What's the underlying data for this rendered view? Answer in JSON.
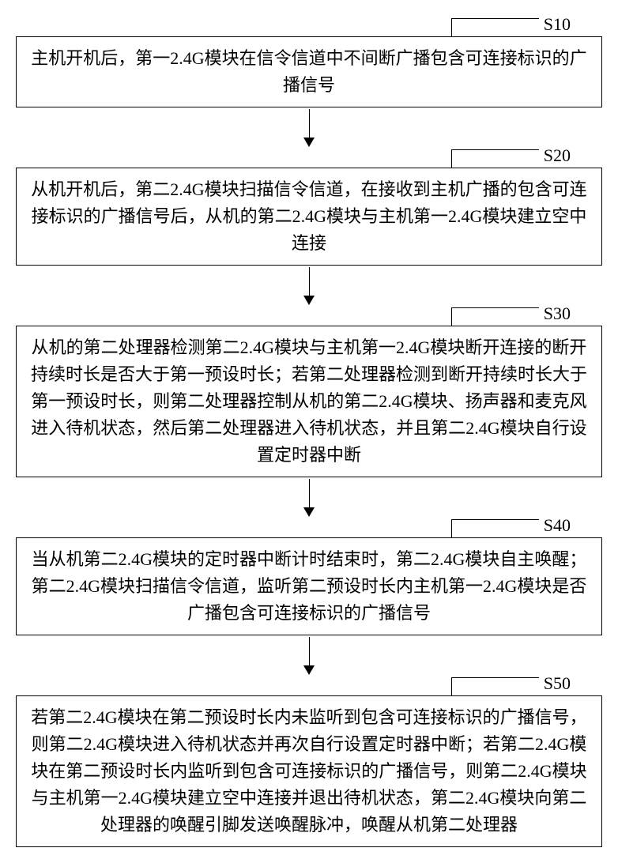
{
  "flowchart": {
    "type": "flowchart",
    "background_color": "#ffffff",
    "border_color": "#000000",
    "text_color": "#000000",
    "font_family": "SimSun",
    "box_font_size": 22,
    "label_font_size": 22,
    "label_font_family": "Times New Roman",
    "line_height": 34,
    "border_width": 1.5,
    "arrow_shaft_height": 38,
    "arrow_head_size": 12,
    "steps": [
      {
        "label": "S10",
        "text": "主机开机后，第一2.4G模块在信令信道中不间断广播包含可连接标识的广播信号"
      },
      {
        "label": "S20",
        "text": "从机开机后，第二2.4G模块扫描信令信道，在接收到主机广播的包含可连接标识的广播信号后，从机的第二2.4G模块与主机第一2.4G模块建立空中连接"
      },
      {
        "label": "S30",
        "text": "从机的第二处理器检测第二2.4G模块与主机第一2.4G模块断开连接的断开持续时长是否大于第一预设时长；若第二处理器检测到断开持续时长大于第一预设时长，则第二处理器控制从机的第二2.4G模块、扬声器和麦克风进入待机状态，然后第二处理器进入待机状态，并且第二2.4G模块自行设置定时器中断"
      },
      {
        "label": "S40",
        "text": "当从机第二2.4G模块的定时器中断计时结束时，第二2.4G模块自主唤醒；第二2.4G模块扫描信令信道，监听第二预设时长内主机第一2.4G模块是否广播包含可连接标识的广播信号"
      },
      {
        "label": "S50",
        "text": "若第二2.4G模块在第二预设时长内未监听到包含可连接标识的广播信号，则第二2.4G模块进入待机状态并再次自行设置定时器中断；若第二2.4G模块在第二预设时长内监听到包含可连接标识的广播信号，则第二2.4G模块与主机第一2.4G模块建立空中连接并退出待机状态，第二2.4G模块向第二处理器的唤醒引脚发送唤醒脉冲，唤醒从机第二处理器"
      }
    ]
  }
}
